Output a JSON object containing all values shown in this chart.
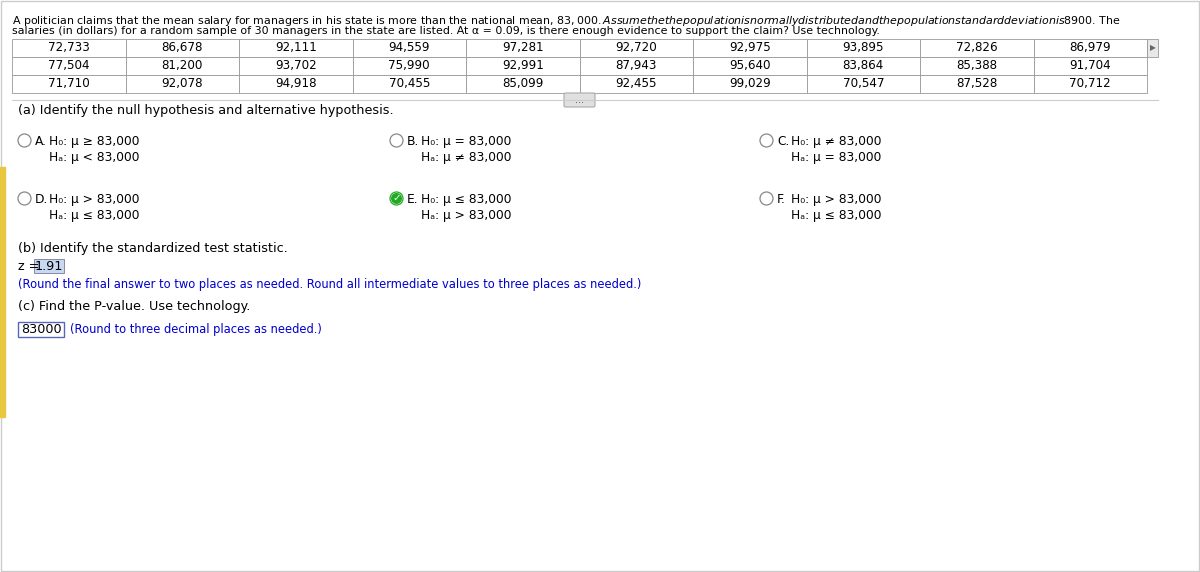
{
  "title_line1": "A politician claims that the mean salary for managers in his state is more than the national mean, $83,000. Assume the the population is normally distributed and the population standard deviation is $8900. The",
  "title_line2": "salaries (in dollars) for a random sample of 30 managers in the state are listed. At α = 0.09, is there enough evidence to support the claim? Use technology.",
  "table_data": [
    [
      "72,733",
      "86,678",
      "92,111",
      "94,559",
      "97,281",
      "92,720",
      "92,975",
      "93,895",
      "72,826",
      "86,979"
    ],
    [
      "77,504",
      "81,200",
      "93,702",
      "75,990",
      "92,991",
      "87,943",
      "95,640",
      "83,864",
      "85,388",
      "91,704"
    ],
    [
      "71,710",
      "92,078",
      "94,918",
      "70,455",
      "85,099",
      "92,455",
      "99,029",
      "70,547",
      "87,528",
      "70,712"
    ]
  ],
  "part_a_label": "(a) Identify the null hypothesis and alternative hypothesis.",
  "options": [
    {
      "id": "A",
      "h0": "H₀: μ ≥ 83,000",
      "ha": "Hₐ: μ < 83,000",
      "selected": false
    },
    {
      "id": "B",
      "h0": "H₀: μ = 83,000",
      "ha": "Hₐ: μ ≠ 83,000",
      "selected": false
    },
    {
      "id": "C",
      "h0": "H₀: μ ≠ 83,000",
      "ha": "Hₐ: μ = 83,000",
      "selected": false
    },
    {
      "id": "D",
      "h0": "H₀: μ > 83,000",
      "ha": "Hₐ: μ ≤ 83,000",
      "selected": false
    },
    {
      "id": "E",
      "h0": "H₀: μ ≤ 83,000",
      "ha": "Hₐ: μ > 83,000",
      "selected": true
    },
    {
      "id": "F",
      "h0": "H₀: μ > 83,000",
      "ha": "Hₐ: μ ≤ 83,000",
      "selected": false
    }
  ],
  "part_b_label": "(b) Identify the standardized test statistic.",
  "z_label": "z = ",
  "z_value": "1.91",
  "z_note": "(Round the final answer to two places as needed. Round all intermediate values to three places as needed.)",
  "part_c_label": "(c) Find the P-value. Use technology.",
  "p_value_box": "83000",
  "p_value_note": "(Round to three decimal places as needed.)",
  "bg_color": "#ffffff",
  "text_color": "#000000",
  "blue_color": "#0000cd",
  "table_border_color": "#999999",
  "selected_green": "#22aa22",
  "radio_color": "#aaaaaa",
  "highlight_blue": "#c8d8f0",
  "left_bar_color": "#e8c840",
  "scroll_btn_color": "#e0e0e0",
  "outer_border_color": "#cccccc"
}
